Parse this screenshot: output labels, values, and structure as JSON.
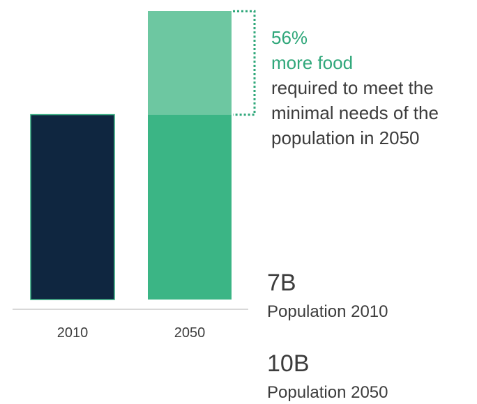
{
  "chart_data": {
    "type": "bar",
    "categories": [
      "2010",
      "2050"
    ],
    "series": [
      {
        "values": [
          100,
          100
        ]
      },
      {
        "values": [
          0,
          56
        ]
      }
    ],
    "ylim": [
      0,
      156
    ],
    "grid": false,
    "colors": {
      "base_2010": "#0f2640",
      "base_2050": "#3bb585",
      "extra": "#6dc7a1",
      "accent": "#2fa77a",
      "axis": "#cccccc",
      "bar_outline": "#2fa77a"
    }
  },
  "annotation": {
    "percent": "56%",
    "headline": "more food",
    "lines": [
      "required to meet the",
      "minimal needs of the",
      "population in 2050"
    ]
  },
  "stats": [
    {
      "value": "7B",
      "label": "Population 2010"
    },
    {
      "value": "10B",
      "label": "Population 2050"
    }
  ]
}
